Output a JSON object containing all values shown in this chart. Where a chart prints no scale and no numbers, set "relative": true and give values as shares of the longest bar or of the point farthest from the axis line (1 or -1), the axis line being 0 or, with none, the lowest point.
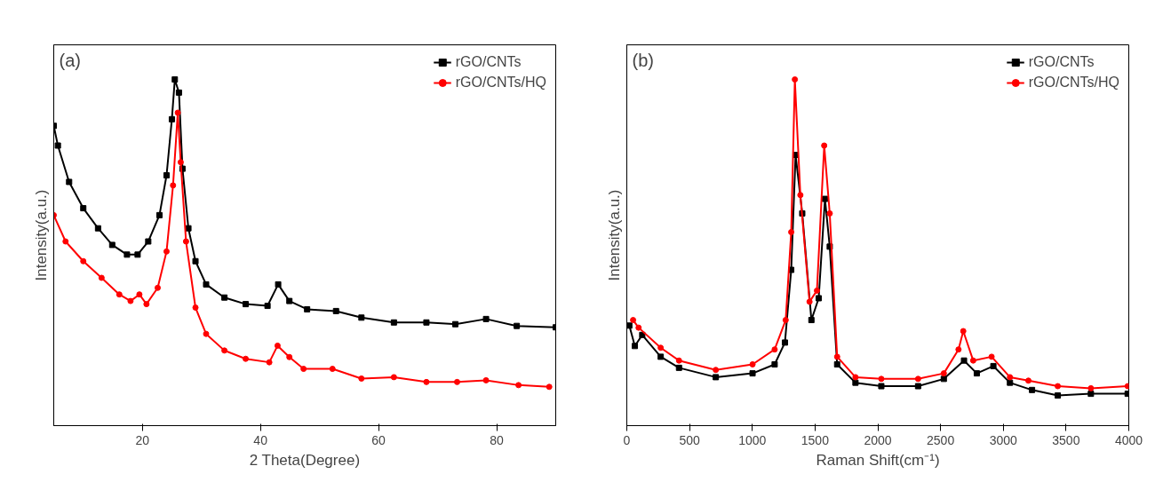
{
  "chart_data": [
    {
      "type": "line",
      "xlabel": "2 Theta(Degree)",
      "ylabel": "Intensity(a.u.)",
      "relative": true,
      "xlim": [
        5,
        90
      ],
      "xticks": [
        20,
        40,
        60,
        80
      ],
      "grid": false,
      "legend": "top right",
      "annotations": [
        "(a)"
      ],
      "series": [
        {
          "name": "rGO/CNTs",
          "color": "#000000",
          "marker": "square",
          "x": [
            5,
            5.7,
            7.6,
            10,
            12.5,
            14.9,
            17.4,
            19.2,
            21,
            22.9,
            24.1,
            25,
            25.5,
            26.2,
            26.8,
            27.8,
            29,
            30.8,
            33.9,
            37.5,
            41.2,
            43,
            44.9,
            47.9,
            52.8,
            57.1,
            62.6,
            68.1,
            73,
            78.2,
            83.4,
            90
          ],
          "values": [
            0.866,
            0.809,
            0.704,
            0.628,
            0.57,
            0.522,
            0.494,
            0.494,
            0.532,
            0.608,
            0.723,
            0.885,
            1.0,
            0.962,
            0.742,
            0.57,
            0.475,
            0.408,
            0.37,
            0.351,
            0.346,
            0.408,
            0.36,
            0.336,
            0.331,
            0.312,
            0.298,
            0.298,
            0.293,
            0.308,
            0.288,
            0.284
          ]
        },
        {
          "name": "rGO/CNTs/HQ",
          "color": "#ff0000",
          "marker": "circle",
          "x": [
            5,
            7,
            10,
            13.1,
            16.1,
            18,
            19.5,
            20.7,
            22.6,
            24.1,
            25.2,
            26,
            26.5,
            27.4,
            29,
            30.8,
            33.9,
            37.5,
            41.5,
            42.9,
            44.9,
            47.3,
            52.2,
            57.1,
            62.6,
            68.1,
            73.3,
            78.2,
            83.7,
            88.9
          ],
          "values": [
            0.608,
            0.532,
            0.475,
            0.427,
            0.379,
            0.36,
            0.379,
            0.351,
            0.398,
            0.503,
            0.694,
            0.904,
            0.761,
            0.532,
            0.341,
            0.265,
            0.217,
            0.193,
            0.183,
            0.231,
            0.198,
            0.164,
            0.164,
            0.136,
            0.14,
            0.126,
            0.126,
            0.131,
            0.117,
            0.112
          ]
        }
      ]
    },
    {
      "type": "line",
      "xlabel": "Raman Shift(cm⁻¹)",
      "ylabel": "Intensity(a.u.)",
      "relative": true,
      "xlim": [
        0,
        4000
      ],
      "xticks": [
        0,
        500,
        1000,
        1500,
        2000,
        2500,
        3000,
        3500,
        4000
      ],
      "grid": false,
      "legend": "top right",
      "annotations": [
        "(b)"
      ],
      "series": [
        {
          "name": "rGO/CNTs",
          "color": "#000000",
          "marker": "square",
          "x": [
            20,
            64,
            123,
            270,
            416,
            709,
            1002,
            1178,
            1260,
            1310,
            1345,
            1398,
            1471,
            1529,
            1579,
            1617,
            1676,
            1822,
            2028,
            2321,
            2526,
            2687,
            2789,
            2921,
            3053,
            3229,
            3434,
            3698,
            3991
          ],
          "values": [
            0.289,
            0.23,
            0.262,
            0.199,
            0.167,
            0.14,
            0.151,
            0.177,
            0.24,
            0.45,
            0.782,
            0.613,
            0.305,
            0.368,
            0.655,
            0.517,
            0.177,
            0.124,
            0.114,
            0.114,
            0.135,
            0.188,
            0.151,
            0.172,
            0.124,
            0.103,
            0.087,
            0.092,
            0.092
          ]
        },
        {
          "name": "rGO/CNTs/HQ",
          "color": "#ff0000",
          "marker": "circle",
          "x": [
            50,
            94,
            270,
            416,
            709,
            1002,
            1178,
            1266,
            1310,
            1339,
            1383,
            1456,
            1515,
            1573,
            1617,
            1676,
            1822,
            2028,
            2321,
            2526,
            2643,
            2681,
            2760,
            2907,
            3053,
            3200,
            3434,
            3698,
            3991
          ],
          "values": [
            0.305,
            0.283,
            0.225,
            0.188,
            0.161,
            0.177,
            0.22,
            0.305,
            0.559,
            1.0,
            0.666,
            0.358,
            0.39,
            0.809,
            0.613,
            0.199,
            0.14,
            0.135,
            0.135,
            0.151,
            0.22,
            0.273,
            0.188,
            0.199,
            0.14,
            0.13,
            0.114,
            0.108,
            0.114
          ]
        }
      ]
    }
  ]
}
